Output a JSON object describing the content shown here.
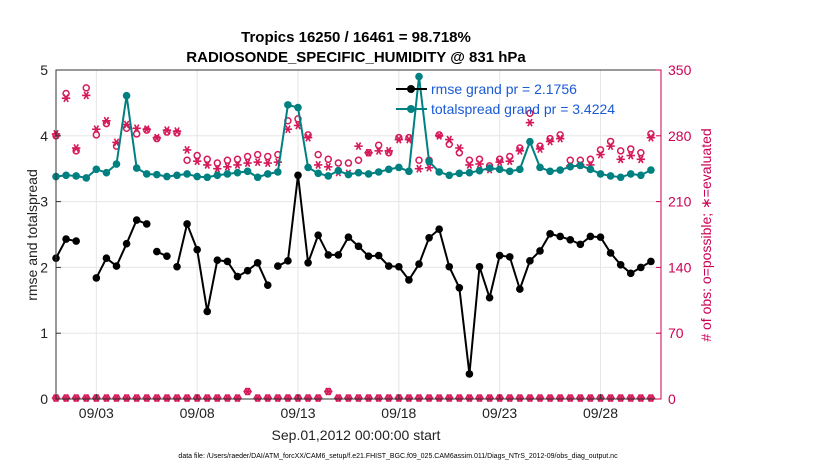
{
  "chart_data": {
    "type": "line",
    "title": "Tropics 16250 / 16461 = 98.718%",
    "subtitle": "RADIOSONDE_SPECIFIC_HUMIDITY @ 831 hPa",
    "xlabel": "Sep.01,2012 00:00:00 start",
    "ylabel": "rmse and totalspread",
    "ylabel_right": "# of obs: o=possible; ∗=evaluated",
    "xlim": [
      1.0,
      31.0
    ],
    "ylim": [
      0,
      5
    ],
    "ylim_right": [
      0,
      350
    ],
    "x_tick_values": [
      3,
      8,
      13,
      18,
      23,
      28
    ],
    "x_tick_labels": [
      "09/03",
      "09/08",
      "09/13",
      "09/18",
      "09/23",
      "09/28"
    ],
    "y_tick_labels": [
      "0",
      "1",
      "2",
      "3",
      "4",
      "5"
    ],
    "y_right_tick_labels": [
      "0",
      "70",
      "140",
      "210",
      "280",
      "350"
    ],
    "legend": [
      "rmse grand pr = 2.1756",
      "totalspread grand pr = 3.4224"
    ],
    "colors": {
      "rmse": "#000000",
      "spread": "#008080",
      "obs": "#d6195a"
    },
    "footnote": "data file: /Users/raeder/DAI/ATM_forcXX/CAM6_setup/f.e21.FHIST_BGC.f09_025.CAM6assim.011/Diags_NTrS_2012-09/obs_diag_output.nc",
    "x": [
      1.0,
      1.5,
      2.0,
      2.5,
      3.0,
      3.5,
      4.0,
      4.5,
      5.0,
      5.5,
      6.0,
      6.5,
      7.0,
      7.5,
      8.0,
      8.5,
      9.0,
      9.5,
      10.0,
      10.5,
      11.0,
      11.5,
      12.0,
      12.5,
      13.0,
      13.5,
      14.0,
      14.5,
      15.0,
      15.5,
      16.0,
      16.5,
      17.0,
      17.5,
      18.0,
      18.5,
      19.0,
      19.5,
      20.0,
      20.5,
      21.0,
      21.5,
      22.0,
      22.5,
      23.0,
      23.5,
      24.0,
      24.5,
      25.0,
      25.5,
      26.0,
      26.5,
      27.0,
      27.5,
      28.0,
      28.5,
      29.0,
      29.5,
      30.0,
      30.5
    ],
    "series": [
      {
        "name": "rmse",
        "segments": [
          {
            "x": [
              1.0,
              1.5,
              2.0
            ],
            "y": [
              2.14,
              2.43,
              2.4
            ]
          },
          {
            "x": [
              3.0,
              3.5,
              4.0,
              4.5,
              5.0,
              5.5
            ],
            "y": [
              1.84,
              2.14,
              2.02,
              2.36,
              2.72,
              2.66
            ]
          },
          {
            "x": [
              6.0,
              6.5
            ],
            "y": [
              2.24,
              2.17
            ]
          },
          {
            "x": [
              7.0,
              7.5,
              8.0,
              8.5,
              9.0,
              9.5,
              10.0,
              10.5,
              11.0,
              11.5
            ],
            "y": [
              2.01,
              2.66,
              2.27,
              1.33,
              2.11,
              2.09,
              1.86,
              1.95,
              2.07,
              1.73
            ]
          },
          {
            "x": [
              12.0,
              12.5,
              13.0,
              13.5,
              14.0,
              14.5,
              15.0,
              15.5,
              16.0,
              16.5,
              17.0,
              17.5,
              18.0,
              18.5,
              19.0,
              19.5,
              20.0,
              20.5,
              21.0,
              21.5,
              22.0,
              22.5,
              23.0,
              23.5,
              24.0,
              24.5,
              25.0,
              25.5,
              26.0,
              26.5,
              27.0,
              27.5,
              28.0,
              28.5,
              29.0,
              29.5,
              30.0,
              30.5
            ],
            "y": [
              2.02,
              2.1,
              3.4,
              2.07,
              2.49,
              2.19,
              2.19,
              2.46,
              2.32,
              2.17,
              2.18,
              2.02,
              2.01,
              1.81,
              2.05,
              2.45,
              2.58,
              2.01,
              1.69,
              0.38,
              2.01,
              1.54,
              2.18,
              2.16,
              1.67,
              2.1,
              2.25,
              2.51,
              2.47,
              2.42,
              2.35,
              2.47,
              2.46,
              2.22,
              2.04,
              1.91,
              2.0,
              2.09
            ]
          }
        ]
      },
      {
        "name": "totalspread",
        "values": [
          3.38,
          3.4,
          3.39,
          3.36,
          3.49,
          3.44,
          3.57,
          4.61,
          3.51,
          3.42,
          3.41,
          3.38,
          3.4,
          3.42,
          3.38,
          3.37,
          3.4,
          3.42,
          3.44,
          3.46,
          3.37,
          3.42,
          3.45,
          4.47,
          4.43,
          3.52,
          3.43,
          3.39,
          3.47,
          3.41,
          3.44,
          3.42,
          3.45,
          3.49,
          3.52,
          3.46,
          4.9,
          3.61,
          3.45,
          3.4,
          3.43,
          3.44,
          3.47,
          3.51,
          3.49,
          3.46,
          3.49,
          3.91,
          3.52,
          3.46,
          3.48,
          3.53,
          3.55,
          3.49,
          3.42,
          3.39,
          3.37,
          3.42,
          3.4,
          3.48
        ]
      },
      {
        "name": "obs_possible",
        "values": [
          280,
          325,
          264,
          331,
          281,
          293,
          269,
          288,
          282,
          286,
          277,
          284,
          283,
          254,
          259,
          255,
          251,
          254,
          255,
          258,
          260,
          258,
          260,
          296,
          298,
          281,
          260,
          255,
          251,
          251,
          254,
          262,
          270,
          262,
          278,
          278,
          254,
          254,
          281,
          271,
          262,
          254,
          255,
          248,
          255,
          258,
          267,
          304,
          269,
          277,
          281,
          254,
          254,
          255,
          265,
          274,
          264,
          266,
          262,
          282
        ]
      },
      {
        "name": "obs_evaluated",
        "values": [
          282,
          320,
          267,
          323,
          287,
          296,
          273,
          292,
          288,
          287,
          278,
          286,
          285,
          265,
          253,
          249,
          245,
          247,
          249,
          251,
          252,
          251,
          252,
          287,
          291,
          278,
          249,
          247,
          241,
          240,
          269,
          262,
          264,
          264,
          276,
          276,
          245,
          246,
          280,
          276,
          267,
          249,
          250,
          244,
          252,
          253,
          264,
          294,
          266,
          274,
          277,
          248,
          249,
          249,
          260,
          269,
          255,
          259,
          255,
          278
        ]
      },
      {
        "name": "obs_bottom_possible",
        "values": [
          1,
          1,
          1,
          1,
          1,
          1,
          1,
          1,
          1,
          1,
          1,
          1,
          1,
          1,
          1,
          1,
          1,
          1,
          1,
          8,
          1,
          1,
          1,
          1,
          1,
          1,
          1,
          8,
          1,
          1,
          1,
          1,
          1,
          1,
          1,
          1,
          1,
          1,
          1,
          1,
          1,
          1,
          1,
          1,
          1,
          1,
          1,
          1,
          1,
          1,
          1,
          1,
          1,
          1,
          1,
          1,
          1,
          1,
          1,
          1
        ]
      }
    ]
  }
}
